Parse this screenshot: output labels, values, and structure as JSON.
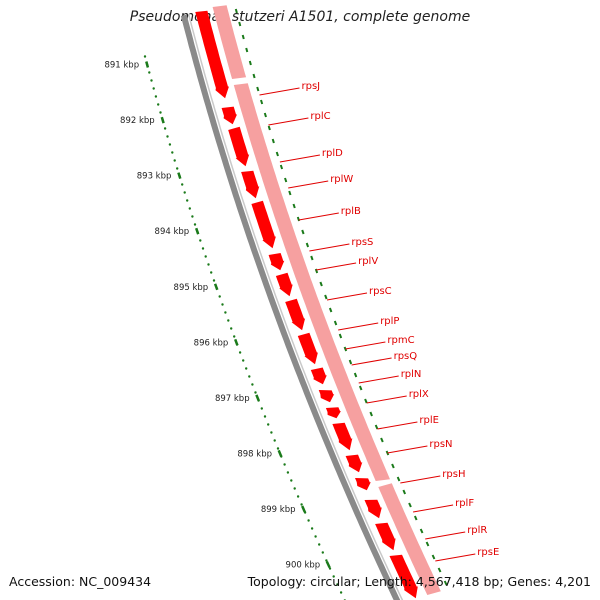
{
  "title": "Pseudomonas stutzeri A1501, complete genome",
  "accession": "Accession: NC_009434",
  "summary": "Topology: circular; Length: 4,567,418 bp; Genes: 4,201",
  "colors": {
    "backbone": "#8a8a8a",
    "gene_dark": "#ff0000",
    "gene_light": "#f6a0a0",
    "label": "#e00000",
    "tick": "#1a7a1a"
  },
  "ruler": {
    "unit": "kbp",
    "major_ticks": [
      891,
      892,
      893,
      894,
      895,
      896,
      897,
      898,
      899,
      900
    ],
    "labels": [
      "891 kbp",
      "892 kbp",
      "893 kbp",
      "894 kbp",
      "895 kbp",
      "896 kbp",
      "897 kbp",
      "898 kbp",
      "899 kbp",
      "900 kbp"
    ]
  },
  "genes": [
    {
      "name": "rpsJ"
    },
    {
      "name": "rplC"
    },
    {
      "name": "rplD"
    },
    {
      "name": "rplW"
    },
    {
      "name": "rplB"
    },
    {
      "name": "rpsS"
    },
    {
      "name": "rplV"
    },
    {
      "name": "rpsC"
    },
    {
      "name": "rplP"
    },
    {
      "name": "rpmC"
    },
    {
      "name": "rpsQ"
    },
    {
      "name": "rplN"
    },
    {
      "name": "rplX"
    },
    {
      "name": "rplE"
    },
    {
      "name": "rpsN"
    },
    {
      "name": "rpsH"
    },
    {
      "name": "rplF"
    },
    {
      "name": "rplR"
    },
    {
      "name": "rpsE"
    }
  ]
}
